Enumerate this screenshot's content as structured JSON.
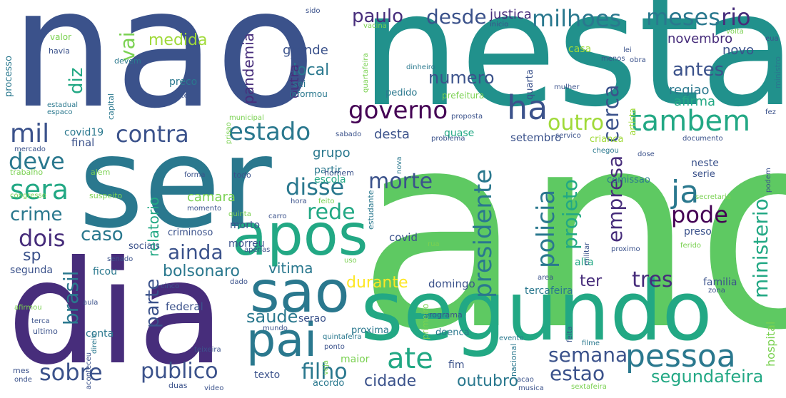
{
  "words": [
    {
      "text": "ano",
      "color": "#5ec962"
    },
    {
      "text": "nesta",
      "color": "#21918c"
    },
    {
      "text": "nao",
      "color": "#3b528b"
    },
    {
      "text": "ser",
      "color": "#2a788e"
    },
    {
      "text": "dia",
      "color": "#472d7b"
    },
    {
      "text": "segundo",
      "color": "#22a884"
    },
    {
      "text": "apos",
      "color": "#22a884"
    },
    {
      "text": "sao",
      "color": "#2a788e"
    },
    {
      "text": "pai",
      "color": "#2a788e"
    },
    {
      "text": "ha",
      "color": "#3b528b"
    },
    {
      "text": "governo",
      "color": "#440154"
    },
    {
      "text": "tambem",
      "color": "#22a884"
    },
    {
      "text": "estado",
      "color": "#2a788e"
    },
    {
      "text": "contra",
      "color": "#3b528b"
    },
    {
      "text": "mil",
      "color": "#3b528b"
    },
    {
      "text": "outro",
      "color": "#a0da39"
    },
    {
      "text": "cerca",
      "color": "#3b528b"
    },
    {
      "text": "meses",
      "color": "#2a788e"
    },
    {
      "text": "milhoes",
      "color": "#2a788e"
    },
    {
      "text": "rio",
      "color": "#472d7b"
    },
    {
      "text": "desde",
      "color": "#3b528b"
    },
    {
      "text": "paulo",
      "color": "#472d7b"
    },
    {
      "text": "justica",
      "color": "#472d7b"
    },
    {
      "text": "vai",
      "color": "#7ad151"
    },
    {
      "text": "diz",
      "color": "#22a884"
    },
    {
      "text": "medida",
      "color": "#a0da39"
    },
    {
      "text": "pandemia",
      "color": "#472d7b"
    },
    {
      "text": "local",
      "color": "#2a788e"
    },
    {
      "text": "numero",
      "color": "#3b528b"
    },
    {
      "text": "antes",
      "color": "#3b528b"
    },
    {
      "text": "regiao",
      "color": "#2a788e"
    },
    {
      "text": "afirma",
      "color": "#22a884"
    },
    {
      "text": "novo",
      "color": "#3b528b"
    },
    {
      "text": "novembro",
      "color": "#472d7b"
    },
    {
      "text": "grande",
      "color": "#3b528b"
    },
    {
      "text": "outra",
      "color": "#472d7b"
    },
    {
      "text": "deve",
      "color": "#2a788e"
    },
    {
      "text": "sera",
      "color": "#22a884"
    },
    {
      "text": "crime",
      "color": "#2a788e"
    },
    {
      "text": "dois",
      "color": "#472d7b"
    },
    {
      "text": "sp",
      "color": "#3b528b"
    },
    {
      "text": "disse",
      "color": "#2a788e"
    },
    {
      "text": "morte",
      "color": "#3b528b"
    },
    {
      "text": "rede",
      "color": "#22a884"
    },
    {
      "text": "ja",
      "color": "#2a788e"
    },
    {
      "text": "pode",
      "color": "#440154"
    },
    {
      "text": "presidente",
      "color": "#2a788e"
    },
    {
      "text": "policia",
      "color": "#2a788e"
    },
    {
      "text": "projeto",
      "color": "#22a884"
    },
    {
      "text": "empresa",
      "color": "#472d7b"
    },
    {
      "text": "ministerio",
      "color": "#22a884"
    },
    {
      "text": "caso",
      "color": "#2a788e"
    },
    {
      "text": "ainda",
      "color": "#3b528b"
    },
    {
      "text": "brasil",
      "color": "#2a788e"
    },
    {
      "text": "parte",
      "color": "#3b528b"
    },
    {
      "text": "bolsonaro",
      "color": "#2a788e"
    },
    {
      "text": "vitima",
      "color": "#2a788e"
    },
    {
      "text": "tres",
      "color": "#472d7b"
    },
    {
      "text": "ter",
      "color": "#472d7b"
    },
    {
      "text": "durante",
      "color": "#fde725"
    },
    {
      "text": "saude",
      "color": "#2a788e"
    },
    {
      "text": "ate",
      "color": "#22a884"
    },
    {
      "text": "semana",
      "color": "#3b528b"
    },
    {
      "text": "pessoa",
      "color": "#2a788e"
    },
    {
      "text": "sobre",
      "color": "#3b528b"
    },
    {
      "text": "publico",
      "color": "#3b528b"
    },
    {
      "text": "filho",
      "color": "#2a788e"
    },
    {
      "text": "estao",
      "color": "#3b528b"
    },
    {
      "text": "cidade",
      "color": "#3b528b"
    },
    {
      "text": "outubro",
      "color": "#2a788e"
    },
    {
      "text": "segundafeira",
      "color": "#22a884"
    },
    {
      "text": "covid19",
      "color": "#2a788e"
    },
    {
      "text": "final",
      "color": "#3b528b"
    },
    {
      "text": "desta",
      "color": "#3b528b"
    },
    {
      "text": "grupo",
      "color": "#2a788e"
    },
    {
      "text": "quase",
      "color": "#22a884"
    },
    {
      "text": "setembro",
      "color": "#3b528b"
    },
    {
      "text": "relatorio",
      "color": "#22a884"
    },
    {
      "text": "camara",
      "color": "#7ad151"
    },
    {
      "text": "partir",
      "color": "#2a788e"
    },
    {
      "text": "escola",
      "color": "#22a884"
    },
    {
      "text": "covid",
      "color": "#3b528b"
    },
    {
      "text": "preso",
      "color": "#3b528b"
    },
    {
      "text": "morto",
      "color": "#3b528b"
    },
    {
      "text": "morreu",
      "color": "#3b528b"
    },
    {
      "text": "criminoso",
      "color": "#3b528b"
    },
    {
      "text": "sociais",
      "color": "#3b528b"
    },
    {
      "text": "segunda",
      "color": "#3b528b"
    },
    {
      "text": "ficou",
      "color": "#2a788e"
    },
    {
      "text": "federal",
      "color": "#3b528b"
    },
    {
      "text": "serao",
      "color": "#3b528b"
    },
    {
      "text": "conta",
      "color": "#2a788e"
    },
    {
      "text": "domingo",
      "color": "#3b528b"
    },
    {
      "text": "tercafeira",
      "color": "#2a788e"
    },
    {
      "text": "alta",
      "color": "#22a884"
    },
    {
      "text": "familia",
      "color": "#3b528b"
    },
    {
      "text": "hospital",
      "color": "#7ad151"
    },
    {
      "text": "texto",
      "color": "#3b528b"
    },
    {
      "text": "acordo",
      "color": "#2a788e"
    },
    {
      "text": "maior",
      "color": "#7ad151"
    },
    {
      "text": "fim",
      "color": "#3b528b"
    },
    {
      "text": "doenca",
      "color": "#2a788e"
    },
    {
      "text": "proxima",
      "color": "#2a788e"
    },
    {
      "text": "nacional",
      "color": "#2a788e"
    },
    {
      "text": "primeiro",
      "color": "#7ad151"
    },
    {
      "text": "prefeitura",
      "color": "#7ad151"
    },
    {
      "text": "pedido",
      "color": "#2a788e"
    },
    {
      "text": "preco",
      "color": "#2a788e"
    },
    {
      "text": "sei",
      "color": "#2a788e"
    },
    {
      "text": "informou",
      "color": "#2a788e"
    },
    {
      "text": "quarta",
      "color": "#3b528b"
    },
    {
      "text": "casa",
      "color": "#a0da39"
    },
    {
      "text": "crianca",
      "color": "#a0da39"
    },
    {
      "text": "comissao",
      "color": "#2a788e"
    },
    {
      "text": "neste",
      "color": "#3b528b"
    },
    {
      "text": "serie",
      "color": "#3b528b"
    },
    {
      "text": "artista",
      "color": "#a0da39"
    },
    {
      "text": "processo",
      "color": "#2a788e"
    },
    {
      "text": "valor",
      "color": "#7ad151"
    },
    {
      "text": "havia",
      "color": "#3b528b"
    },
    {
      "text": "devem",
      "color": "#2a788e"
    },
    {
      "text": "vida",
      "color": "#3b528b"
    },
    {
      "text": "sido",
      "color": "#3b528b"
    },
    {
      "text": "vacina",
      "color": "#7ad151"
    },
    {
      "text": "inicio",
      "color": "#3b528b"
    },
    {
      "text": "lei",
      "color": "#3b528b"
    },
    {
      "text": "volta",
      "color": "#7ad151"
    },
    {
      "text": "eua",
      "color": "#3b528b"
    },
    {
      "text": "menos",
      "color": "#3b528b"
    },
    {
      "text": "obra",
      "color": "#3b528b"
    },
    {
      "text": "ministro",
      "color": "#2a788e"
    },
    {
      "text": "mulher",
      "color": "#3b528b"
    },
    {
      "text": "fez",
      "color": "#3b528b"
    },
    {
      "text": "capital",
      "color": "#2a788e"
    },
    {
      "text": "estadual",
      "color": "#2a788e"
    },
    {
      "text": "espaco",
      "color": "#2a788e"
    },
    {
      "text": "deste",
      "color": "#3b528b"
    },
    {
      "text": "municipal",
      "color": "#7ad151"
    },
    {
      "text": "quartafeira",
      "color": "#7ad151"
    },
    {
      "text": "dinheiro",
      "color": "#2a788e"
    },
    {
      "text": "proposta",
      "color": "#3b528b"
    },
    {
      "text": "sabado",
      "color": "#3b528b"
    },
    {
      "text": "problema",
      "color": "#3b528b"
    },
    {
      "text": "servico",
      "color": "#3b528b"
    },
    {
      "text": "chegou",
      "color": "#2a788e"
    },
    {
      "text": "documento",
      "color": "#3b528b"
    },
    {
      "text": "dose",
      "color": "#3b528b"
    },
    {
      "text": "mercado",
      "color": "#3b528b"
    },
    {
      "text": "trabalho",
      "color": "#7ad151"
    },
    {
      "text": "alem",
      "color": "#7ad151"
    },
    {
      "text": "todo",
      "color": "#3b528b"
    },
    {
      "text": "prisao",
      "color": "#7ad151"
    },
    {
      "text": "forma",
      "color": "#3b528b"
    },
    {
      "text": "homem",
      "color": "#3b528b"
    },
    {
      "text": "nova",
      "color": "#2a788e"
    },
    {
      "text": "congresso",
      "color": "#7ad151"
    },
    {
      "text": "suspeito",
      "color": "#7ad151"
    },
    {
      "text": "momento",
      "color": "#3b528b"
    },
    {
      "text": "quinta",
      "color": "#7ad151"
    },
    {
      "text": "carro",
      "color": "#3b528b"
    },
    {
      "text": "hora",
      "color": "#3b528b"
    },
    {
      "text": "feito",
      "color": "#7ad151"
    },
    {
      "text": "estudante",
      "color": "#2a788e"
    },
    {
      "text": "secretaria",
      "color": "#7ad151"
    },
    {
      "text": "podem",
      "color": "#3b528b"
    },
    {
      "text": "ferido",
      "color": "#7ad151"
    },
    {
      "text": "proximo",
      "color": "#3b528b"
    },
    {
      "text": "militar",
      "color": "#3b528b"
    },
    {
      "text": "apenas",
      "color": "#3b528b"
    },
    {
      "text": "senado",
      "color": "#3b528b"
    },
    {
      "text": "rua",
      "color": "#7ad151"
    },
    {
      "text": "uso",
      "color": "#7ad151"
    },
    {
      "text": "area",
      "color": "#3b528b"
    },
    {
      "text": "dado",
      "color": "#3b528b"
    },
    {
      "text": "cinco",
      "color": "#3b528b"
    },
    {
      "text": "aula",
      "color": "#3b528b"
    },
    {
      "text": "zona",
      "color": "#3b528b"
    },
    {
      "text": "afirmou",
      "color": "#7ad151"
    },
    {
      "text": "terca",
      "color": "#3b528b"
    },
    {
      "text": "ultimo",
      "color": "#3b528b"
    },
    {
      "text": "direito",
      "color": "#2a788e"
    },
    {
      "text": "teixeira",
      "color": "#3b528b"
    },
    {
      "text": "mundo",
      "color": "#3b528b"
    },
    {
      "text": "quintafeira",
      "color": "#2a788e"
    },
    {
      "text": "ponto",
      "color": "#3b528b"
    },
    {
      "text": "veja",
      "color": "#7ad151"
    },
    {
      "text": "evento",
      "color": "#2a788e"
    },
    {
      "text": "feita",
      "color": "#3b528b"
    },
    {
      "text": "filme",
      "color": "#2a788e"
    },
    {
      "text": "acao",
      "color": "#3b528b"
    },
    {
      "text": "musica",
      "color": "#3b528b"
    },
    {
      "text": "sextafeira",
      "color": "#7ad151"
    },
    {
      "text": "aconteceu",
      "color": "#3b528b"
    },
    {
      "text": "mes",
      "color": "#3b528b"
    },
    {
      "text": "onde",
      "color": "#3b528b"
    },
    {
      "text": "duas",
      "color": "#3b528b"
    },
    {
      "text": "video",
      "color": "#3b528b"
    },
    {
      "text": "programa",
      "color": "#3b528b"
    },
    {
      "text": "g1",
      "color": "#3b528b"
    }
  ]
}
